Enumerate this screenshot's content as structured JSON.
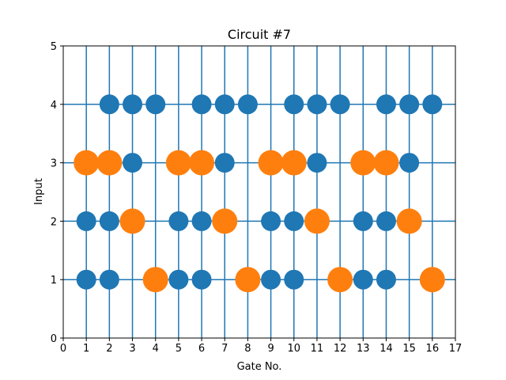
{
  "chart_data": {
    "type": "scatter",
    "title": "Circuit #7",
    "xlabel": "Gate No.",
    "ylabel": "Input",
    "xlim": [
      0,
      17
    ],
    "ylim": [
      0,
      5
    ],
    "xticks": [
      "0",
      "1",
      "2",
      "3",
      "4",
      "5",
      "6",
      "7",
      "8",
      "9",
      "10",
      "11",
      "12",
      "13",
      "14",
      "15",
      "16",
      "17"
    ],
    "yticks": [
      "0",
      "1",
      "2",
      "3",
      "4",
      "5"
    ],
    "grid": "vertical lines at each gate, horizontal lines at each input",
    "colors": {
      "blue": "#1f77b4",
      "orange": "#ff7f0e"
    },
    "series": [
      {
        "color": "blue",
        "points": [
          [
            1,
            1
          ],
          [
            2,
            1
          ],
          [
            5,
            1
          ],
          [
            6,
            1
          ],
          [
            9,
            1
          ],
          [
            10,
            1
          ],
          [
            13,
            1
          ],
          [
            14,
            1
          ],
          [
            1,
            2
          ],
          [
            2,
            2
          ],
          [
            5,
            2
          ],
          [
            6,
            2
          ],
          [
            9,
            2
          ],
          [
            10,
            2
          ],
          [
            13,
            2
          ],
          [
            14,
            2
          ],
          [
            3,
            3
          ],
          [
            7,
            3
          ],
          [
            11,
            3
          ],
          [
            15,
            3
          ],
          [
            2,
            4
          ],
          [
            3,
            4
          ],
          [
            4,
            4
          ],
          [
            6,
            4
          ],
          [
            7,
            4
          ],
          [
            8,
            4
          ],
          [
            10,
            4
          ],
          [
            11,
            4
          ],
          [
            12,
            4
          ],
          [
            14,
            4
          ],
          [
            15,
            4
          ],
          [
            16,
            4
          ]
        ]
      },
      {
        "color": "orange",
        "points": [
          [
            4,
            1
          ],
          [
            8,
            1
          ],
          [
            12,
            1
          ],
          [
            16,
            1
          ],
          [
            3,
            2
          ],
          [
            7,
            2
          ],
          [
            11,
            2
          ],
          [
            15,
            2
          ],
          [
            1,
            3
          ],
          [
            2,
            3
          ],
          [
            5,
            3
          ],
          [
            6,
            3
          ],
          [
            9,
            3
          ],
          [
            10,
            3
          ],
          [
            13,
            3
          ],
          [
            14,
            3
          ]
        ]
      }
    ]
  }
}
